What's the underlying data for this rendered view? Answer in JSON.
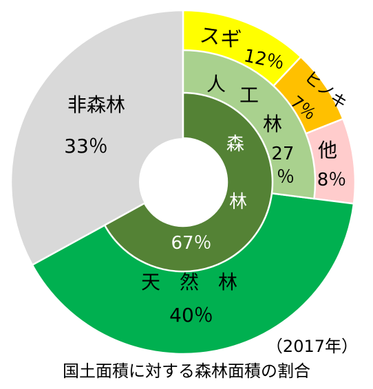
{
  "chart_data": {
    "type": "pie",
    "year_label": "（2017年）",
    "title": "国土面積に対する森林面積の割合",
    "outer_ring": [
      {
        "name": "非森林",
        "value": 33,
        "text": "33％",
        "color": "#d9d9d9"
      },
      {
        "name": "スギ",
        "value": 12,
        "text": "12％",
        "color": "#ffff00"
      },
      {
        "name": "ヒノキ",
        "value": 7,
        "text": "7％",
        "color": "#ffc000"
      },
      {
        "name": "他",
        "value": 8,
        "text": "8％",
        "color": "#ffcccc"
      },
      {
        "name": "天　然　林",
        "value": 40,
        "text": "40％",
        "color": "#00b050"
      }
    ],
    "middle_ring": [
      {
        "name": "人　工　林",
        "value": 27,
        "text": "27％",
        "color": "#a9d18e"
      }
    ],
    "inner_ring": [
      {
        "name": "森林",
        "value": 67,
        "text": "67％",
        "color": "#548235"
      }
    ]
  }
}
